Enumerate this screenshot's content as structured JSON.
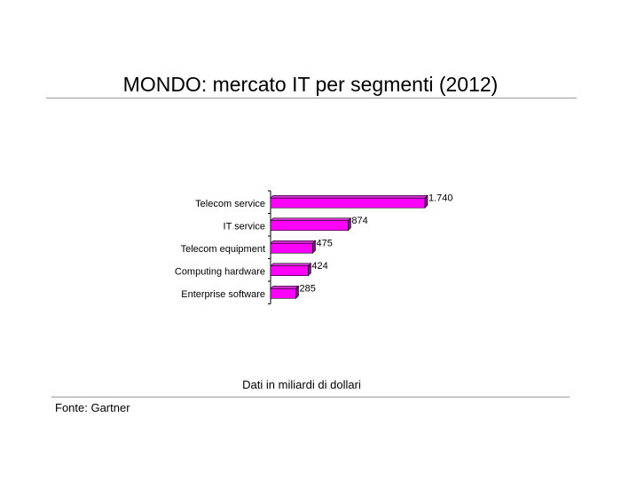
{
  "title": "MONDO: mercato IT per segmenti (2012)",
  "unit_note": "Dati in miliardi di dollari",
  "source": "Fonte: Gartner",
  "chart_data": {
    "type": "bar",
    "orientation": "horizontal",
    "title": "MONDO: mercato IT per segmenti (2012)",
    "categories": [
      "Telecom service",
      "IT service",
      "Telecom equipment",
      "Computing hardware",
      "Enterprise software"
    ],
    "values": [
      1740,
      874,
      475,
      424,
      285
    ],
    "value_labels": [
      "1.740",
      "874",
      "475",
      "424",
      "285"
    ],
    "xlim": [
      0,
      1740
    ],
    "grid": false,
    "legend": "none",
    "colors": {
      "bar": "#ff00ff",
      "bar_side": "#8a008a",
      "bar_top": "#cc33cc"
    }
  }
}
